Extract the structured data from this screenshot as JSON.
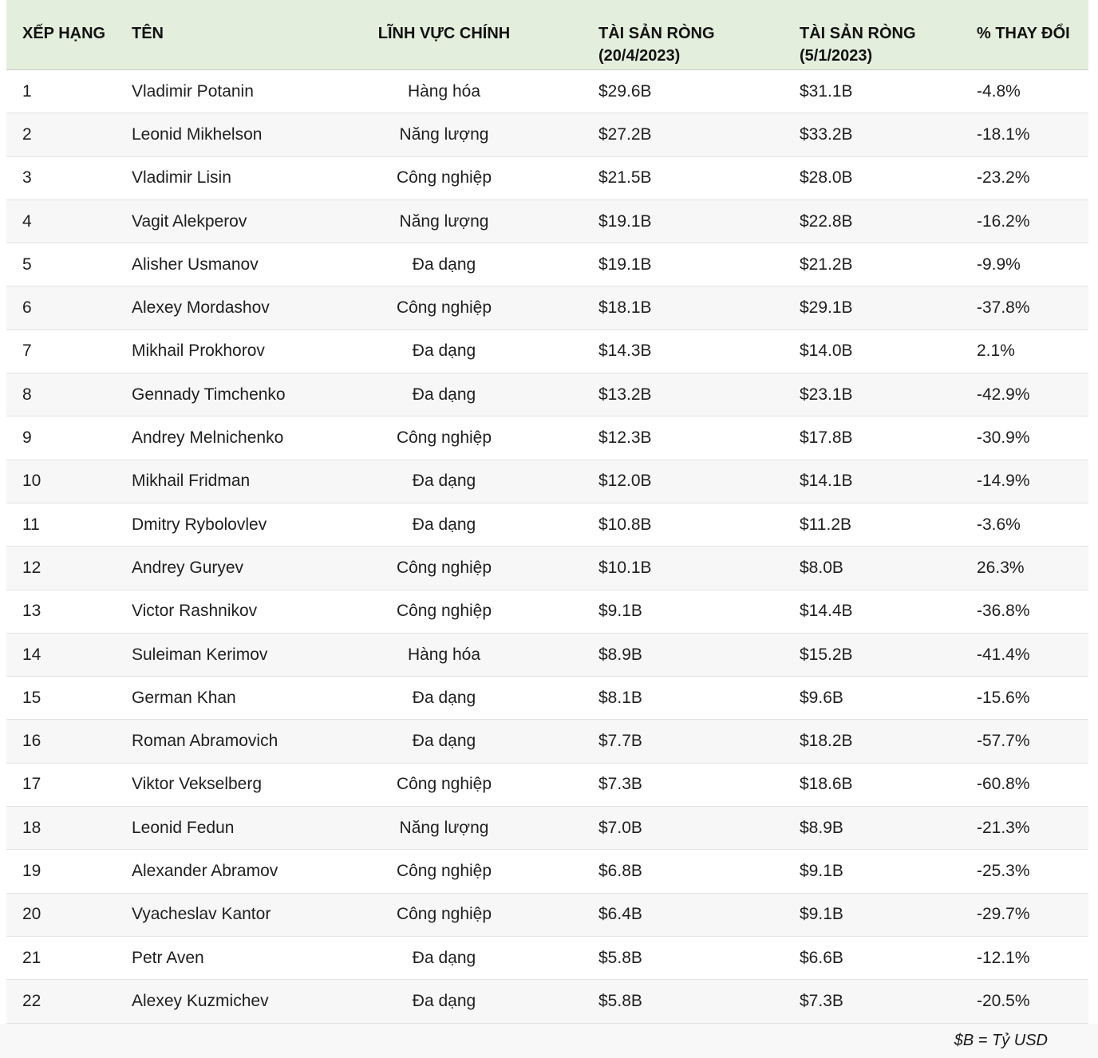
{
  "colors": {
    "header_bg": "#e4eedd",
    "alt_row_bg": "#f7f7f7",
    "footer_bg": "#f8f8f8",
    "row_border": "#e2e2e2",
    "header_border": "#c8ccc5",
    "text": "#1f1f1f"
  },
  "chart_data": {
    "type": "table",
    "columns": [
      {
        "label": "XẾP HẠNG"
      },
      {
        "label": "TÊN"
      },
      {
        "label": "LĨNH VỰC CHÍNH"
      },
      {
        "label": "TÀI SẢN RÒNG",
        "sublabel": "(20/4/2023)"
      },
      {
        "label": "TÀI SẢN RÒNG",
        "sublabel": "(5/1/2023)"
      },
      {
        "label": "% THAY ĐỔI"
      }
    ],
    "rows": [
      [
        "1",
        "Vladimir Potanin",
        "Hàng hóa",
        "$29.6B",
        "$31.1B",
        "-4.8%"
      ],
      [
        "2",
        "Leonid Mikhelson",
        "Năng lượng",
        "$27.2B",
        "$33.2B",
        "-18.1%"
      ],
      [
        "3",
        "Vladimir Lisin",
        "Công nghiệp",
        "$21.5B",
        "$28.0B",
        "-23.2%"
      ],
      [
        "4",
        "Vagit Alekperov",
        "Năng lượng",
        "$19.1B",
        "$22.8B",
        "-16.2%"
      ],
      [
        "5",
        "Alisher Usmanov",
        "Đa dạng",
        "$19.1B",
        "$21.2B",
        "-9.9%"
      ],
      [
        "6",
        "Alexey Mordashov",
        "Công nghiệp",
        "$18.1B",
        "$29.1B",
        "-37.8%"
      ],
      [
        "7",
        "Mikhail Prokhorov",
        "Đa dạng",
        "$14.3B",
        "$14.0B",
        "2.1%"
      ],
      [
        "8",
        "Gennady Timchenko",
        "Đa dạng",
        "$13.2B",
        "$23.1B",
        "-42.9%"
      ],
      [
        "9",
        "Andrey Melnichenko",
        "Công nghiệp",
        "$12.3B",
        "$17.8B",
        "-30.9%"
      ],
      [
        "10",
        "Mikhail Fridman",
        "Đa dạng",
        "$12.0B",
        "$14.1B",
        "-14.9%"
      ],
      [
        "11",
        "Dmitry Rybolovlev",
        "Đa dạng",
        "$10.8B",
        "$11.2B",
        "-3.6%"
      ],
      [
        "12",
        "Andrey Guryev",
        "Công nghiệp",
        "$10.1B",
        "$8.0B",
        "26.3%"
      ],
      [
        "13",
        "Victor Rashnikov",
        "Công nghiệp",
        "$9.1B",
        "$14.4B",
        "-36.8%"
      ],
      [
        "14",
        "Suleiman Kerimov",
        "Hàng hóa",
        "$8.9B",
        "$15.2B",
        "-41.4%"
      ],
      [
        "15",
        "German Khan",
        "Đa dạng",
        "$8.1B",
        "$9.6B",
        "-15.6%"
      ],
      [
        "16",
        "Roman Abramovich",
        "Đa dạng",
        "$7.7B",
        "$18.2B",
        "-57.7%"
      ],
      [
        "17",
        "Viktor Vekselberg",
        "Công nghiệp",
        "$7.3B",
        "$18.6B",
        "-60.8%"
      ],
      [
        "18",
        "Leonid Fedun",
        "Năng lượng",
        "$7.0B",
        "$8.9B",
        "-21.3%"
      ],
      [
        "19",
        "Alexander Abramov",
        "Công nghiệp",
        "$6.8B",
        "$9.1B",
        "-25.3%"
      ],
      [
        "20",
        "Vyacheslav Kantor",
        "Công nghiệp",
        "$6.4B",
        "$9.1B",
        "-29.7%"
      ],
      [
        "21",
        "Petr Aven",
        "Đa dạng",
        "$5.8B",
        "$6.6B",
        "-12.1%"
      ],
      [
        "22",
        "Alexey Kuzmichev",
        "Đa dạng",
        "$5.8B",
        "$7.3B",
        "-20.5%"
      ]
    ],
    "footnote": "$B = Tỷ USD"
  }
}
